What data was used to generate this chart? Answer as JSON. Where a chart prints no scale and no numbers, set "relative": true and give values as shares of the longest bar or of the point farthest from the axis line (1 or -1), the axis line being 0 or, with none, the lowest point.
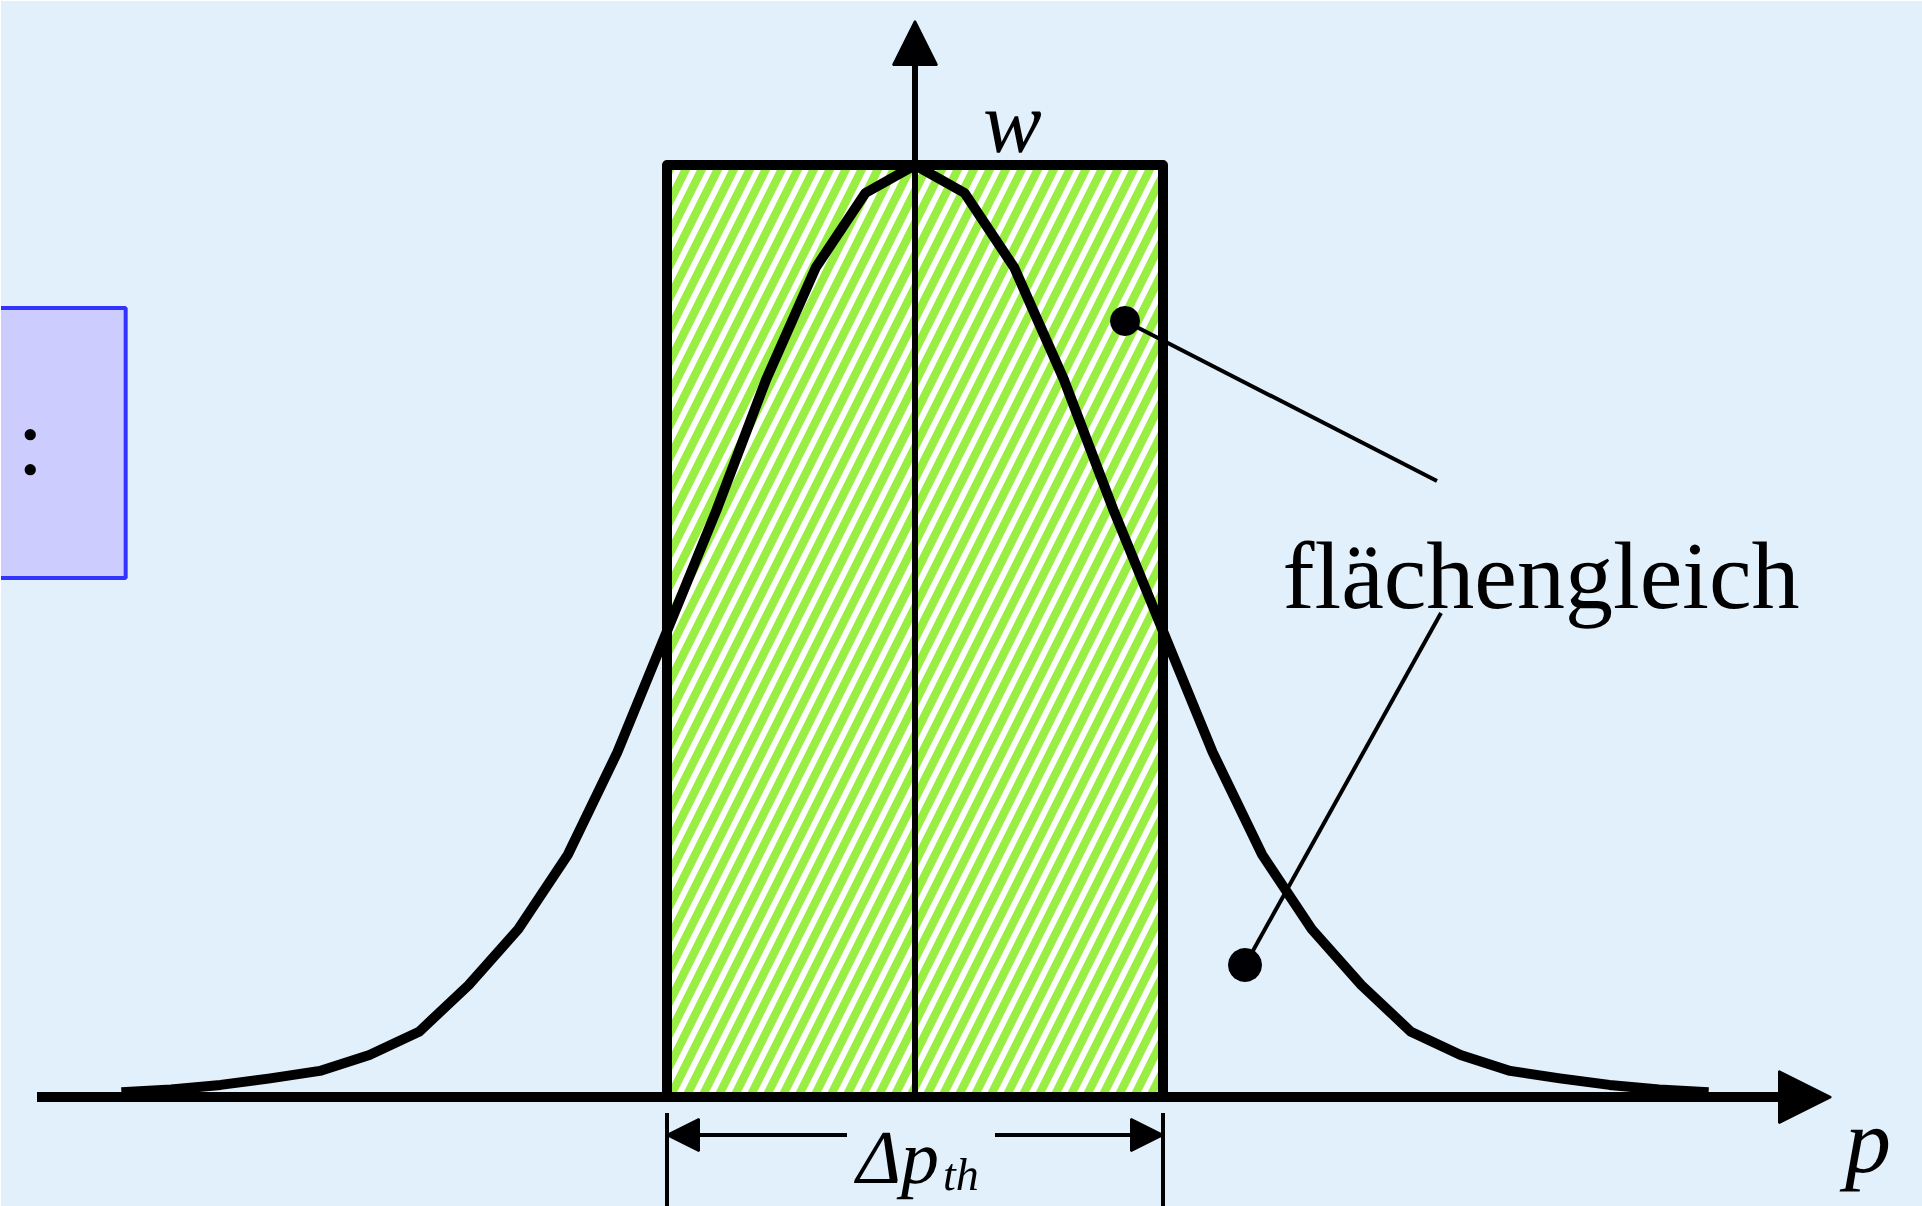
{
  "chart_data": {
    "type": "line",
    "relative": true,
    "xlabel": "p",
    "ylabel": "w",
    "categories": [
      null,
      null,
      null,
      null,
      null,
      null,
      null,
      null,
      null,
      null,
      null,
      null,
      null,
      null,
      null,
      null,
      null,
      null,
      null,
      null,
      null,
      null,
      null,
      null,
      null,
      null,
      null,
      null,
      null,
      null,
      null,
      null,
      null
    ],
    "series": [
      {
        "type": "area",
        "color": "#99ee44",
        "values": [
          null,
          null,
          null,
          null,
          null,
          null,
          null,
          null,
          null,
          null,
          null,
          1,
          1,
          1,
          1,
          1,
          1,
          1,
          1,
          1,
          1,
          1,
          null,
          null,
          null,
          null,
          null,
          null,
          null,
          null,
          null,
          null,
          null
        ]
      },
      {
        "color": "#000000",
        "values": [
          0.005,
          0.008,
          0.013,
          0.02,
          0.028,
          0.045,
          0.07,
          0.12,
          0.18,
          0.26,
          0.37,
          0.5,
          0.63,
          0.77,
          0.89,
          0.97,
          1,
          0.97,
          0.89,
          0.77,
          0.63,
          0.5,
          0.37,
          0.26,
          0.18,
          0.12,
          0.07,
          0.045,
          0.028,
          0.02,
          0.013,
          0.008,
          0.005
        ]
      }
    ],
    "annotations": [
      "flächengleich",
      "Δp$_{th}$",
      ":"
    ]
  }
}
